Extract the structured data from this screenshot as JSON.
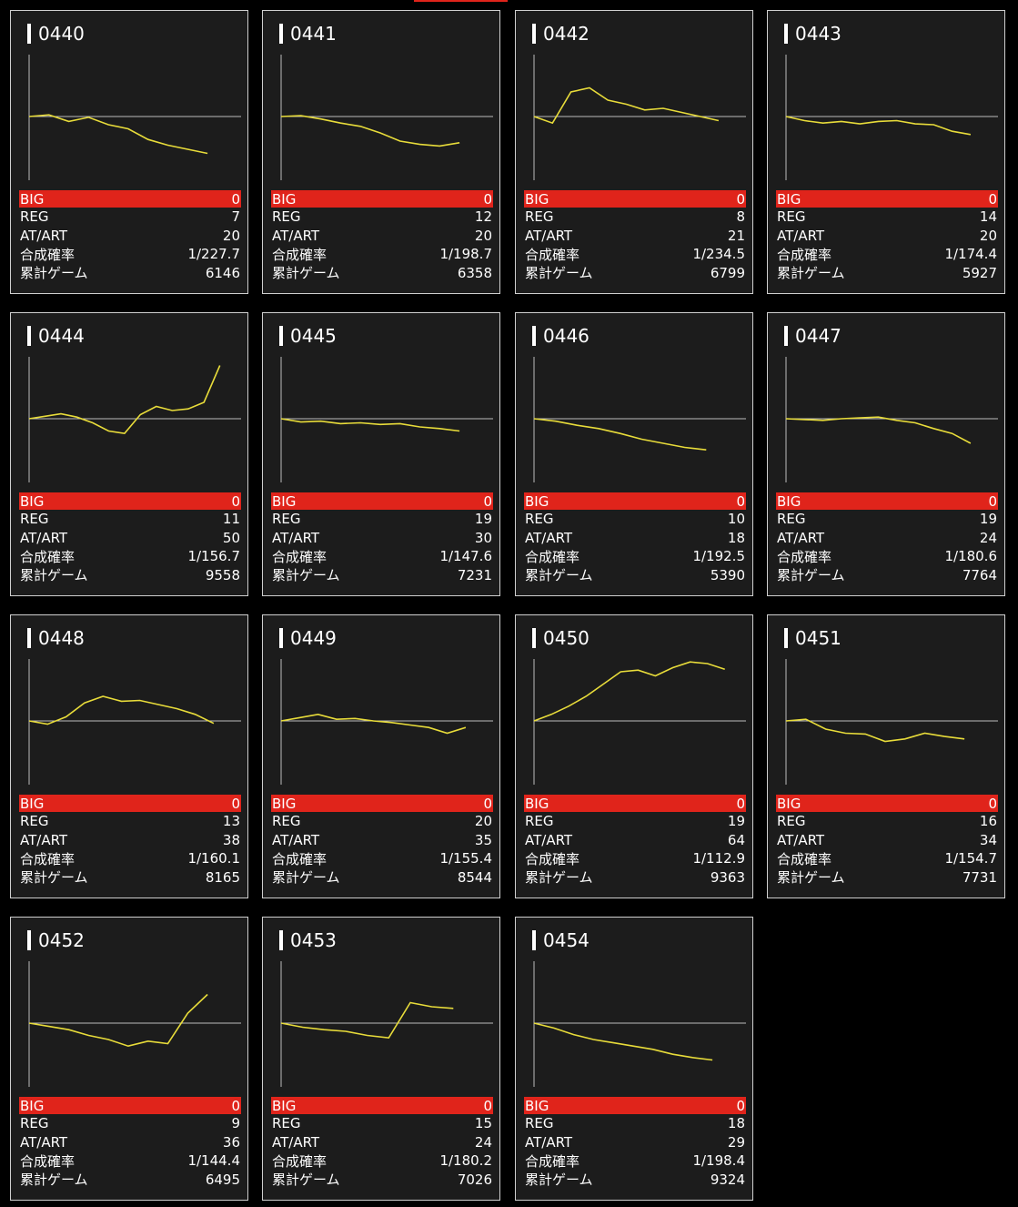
{
  "labels": {
    "big": "BIG",
    "reg": "REG",
    "atart": "AT/ART",
    "rate": "合成確率",
    "games": "累計ゲーム"
  },
  "colors": {
    "big_bar": "#e0241b",
    "line": "#e8dc3a",
    "axis": "#bdbdbd",
    "card_bg": "#1c1c1c"
  },
  "machines": [
    {
      "id": "0440",
      "big": "0",
      "reg": "7",
      "atart": "20",
      "rate": "1/227.7",
      "games": "6146",
      "trend": [
        0,
        0.02,
        -0.06,
        -0.01,
        -0.1,
        -0.15,
        -0.28,
        -0.35,
        -0.4,
        -0.45
      ]
    },
    {
      "id": "0441",
      "big": "0",
      "reg": "12",
      "atart": "20",
      "rate": "1/198.7",
      "games": "6358",
      "trend": [
        0,
        0.01,
        -0.03,
        -0.08,
        -0.12,
        -0.2,
        -0.3,
        -0.34,
        -0.36,
        -0.32
      ]
    },
    {
      "id": "0442",
      "big": "0",
      "reg": "8",
      "atart": "21",
      "rate": "1/234.5",
      "games": "6799",
      "trend": [
        0,
        -0.08,
        0.3,
        0.35,
        0.2,
        0.15,
        0.08,
        0.1,
        0.05,
        0.0,
        -0.05
      ]
    },
    {
      "id": "0443",
      "big": "0",
      "reg": "14",
      "atart": "20",
      "rate": "1/174.4",
      "games": "5927",
      "trend": [
        0,
        -0.05,
        -0.08,
        -0.06,
        -0.09,
        -0.06,
        -0.05,
        -0.09,
        -0.1,
        -0.18,
        -0.22
      ]
    },
    {
      "id": "0444",
      "big": "0",
      "reg": "11",
      "atart": "50",
      "rate": "1/156.7",
      "games": "9558",
      "trend": [
        0,
        0.03,
        0.06,
        0.02,
        -0.05,
        -0.15,
        -0.18,
        0.05,
        0.15,
        0.1,
        0.12,
        0.2,
        0.65
      ]
    },
    {
      "id": "0445",
      "big": "0",
      "reg": "19",
      "atart": "30",
      "rate": "1/147.6",
      "games": "7231",
      "trend": [
        0,
        -0.04,
        -0.03,
        -0.06,
        -0.05,
        -0.07,
        -0.06,
        -0.1,
        -0.12,
        -0.15
      ]
    },
    {
      "id": "0446",
      "big": "0",
      "reg": "10",
      "atart": "18",
      "rate": "1/192.5",
      "games": "5390",
      "trend": [
        0,
        -0.03,
        -0.08,
        -0.12,
        -0.18,
        -0.25,
        -0.3,
        -0.35,
        -0.38
      ]
    },
    {
      "id": "0447",
      "big": "0",
      "reg": "19",
      "atart": "24",
      "rate": "1/180.6",
      "games": "7764",
      "trend": [
        0,
        -0.01,
        -0.02,
        0.0,
        0.01,
        0.02,
        -0.02,
        -0.05,
        -0.12,
        -0.18,
        -0.3
      ]
    },
    {
      "id": "0448",
      "big": "0",
      "reg": "13",
      "atart": "38",
      "rate": "1/160.1",
      "games": "8165",
      "trend": [
        0,
        -0.04,
        0.05,
        0.22,
        0.3,
        0.24,
        0.25,
        0.2,
        0.15,
        0.08,
        -0.03
      ]
    },
    {
      "id": "0449",
      "big": "0",
      "reg": "20",
      "atart": "35",
      "rate": "1/155.4",
      "games": "8544",
      "trend": [
        0,
        0.04,
        0.08,
        0.02,
        0.03,
        0.0,
        -0.02,
        -0.05,
        -0.08,
        -0.15,
        -0.08
      ]
    },
    {
      "id": "0450",
      "big": "0",
      "reg": "19",
      "atart": "64",
      "rate": "1/112.9",
      "games": "9363",
      "trend": [
        0,
        0.08,
        0.18,
        0.3,
        0.45,
        0.6,
        0.62,
        0.55,
        0.65,
        0.72,
        0.7,
        0.63
      ]
    },
    {
      "id": "0451",
      "big": "0",
      "reg": "16",
      "atart": "34",
      "rate": "1/154.7",
      "games": "7731",
      "trend": [
        0,
        0.02,
        -0.1,
        -0.15,
        -0.16,
        -0.25,
        -0.22,
        -0.15,
        -0.19,
        -0.22
      ]
    },
    {
      "id": "0452",
      "big": "0",
      "reg": "9",
      "atart": "36",
      "rate": "1/144.4",
      "games": "6495",
      "trend": [
        0,
        -0.04,
        -0.08,
        -0.15,
        -0.2,
        -0.28,
        -0.22,
        -0.25,
        0.12,
        0.35
      ]
    },
    {
      "id": "0453",
      "big": "0",
      "reg": "15",
      "atart": "24",
      "rate": "1/180.2",
      "games": "7026",
      "trend": [
        0,
        -0.05,
        -0.08,
        -0.1,
        -0.15,
        -0.18,
        0.25,
        0.2,
        0.18
      ]
    },
    {
      "id": "0454",
      "big": "0",
      "reg": "18",
      "atart": "29",
      "rate": "1/198.4",
      "games": "9324",
      "trend": [
        0,
        -0.06,
        -0.14,
        -0.2,
        -0.24,
        -0.28,
        -0.32,
        -0.38,
        -0.42,
        -0.45
      ]
    }
  ]
}
